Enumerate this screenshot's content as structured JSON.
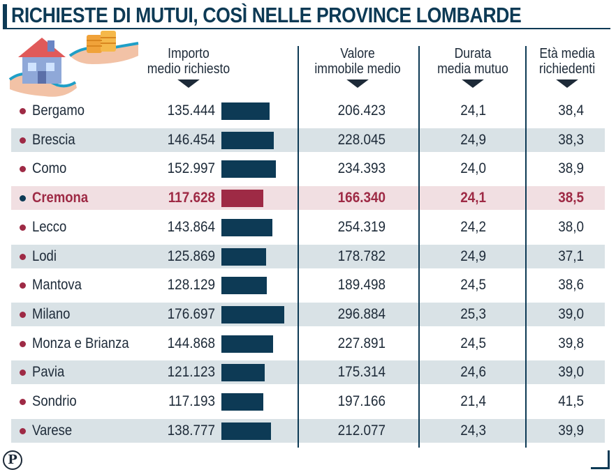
{
  "title": "RICHIESTE DI MUTUI, COSÌ NELLE PROVINCE LOMBARDE",
  "colors": {
    "primary": "#0d3a55",
    "highlight": "#9e2a45",
    "stripe": "#d9e2e6",
    "highlight_bg": "#f1dfe2"
  },
  "icons": {
    "illustration": "house-in-hands-icon",
    "logo": "publisher-p-logo-icon"
  },
  "logo_letter": "P",
  "chart_data": {
    "type": "table",
    "highlighted": "Cremona",
    "columns": [
      {
        "key": "importo",
        "line1": "Importo",
        "line2": "medio richiesto"
      },
      {
        "key": "valore",
        "line1": "Valore",
        "line2": "immobile medio"
      },
      {
        "key": "durata",
        "line1": "Durata",
        "line2": "media mutuo"
      },
      {
        "key": "eta",
        "line1": "Età media",
        "line2": "richiedenti"
      }
    ],
    "bar_series": "importo",
    "bar_range": [
      0,
      176.697
    ],
    "rows": [
      {
        "provincia": "Bergamo",
        "importo": "135.444",
        "importo_k": 135.444,
        "valore": "206.423",
        "durata": "24,1",
        "eta": "38,4"
      },
      {
        "provincia": "Brescia",
        "importo": "146.454",
        "importo_k": 146.454,
        "valore": "228.045",
        "durata": "24,9",
        "eta": "38,3"
      },
      {
        "provincia": "Como",
        "importo": "152.997",
        "importo_k": 152.997,
        "valore": "234.393",
        "durata": "24,0",
        "eta": "38,9"
      },
      {
        "provincia": "Cremona",
        "importo": "117.628",
        "importo_k": 117.628,
        "valore": "166.340",
        "durata": "24,1",
        "eta": "38,5"
      },
      {
        "provincia": "Lecco",
        "importo": "143.864",
        "importo_k": 143.864,
        "valore": "254.319",
        "durata": "24,2",
        "eta": "38,0"
      },
      {
        "provincia": "Lodi",
        "importo": "125.869",
        "importo_k": 125.869,
        "valore": "178.782",
        "durata": "24,9",
        "eta": "37,1"
      },
      {
        "provincia": "Mantova",
        "importo": "128.129",
        "importo_k": 128.129,
        "valore": "189.498",
        "durata": "24,5",
        "eta": "38,6"
      },
      {
        "provincia": "Milano",
        "importo": "176.697",
        "importo_k": 176.697,
        "valore": "296.884",
        "durata": "25,3",
        "eta": "39,0"
      },
      {
        "provincia": "Monza e Brianza",
        "importo": "144.868",
        "importo_k": 144.868,
        "valore": "227.891",
        "durata": "24,5",
        "eta": "39,8"
      },
      {
        "provincia": "Pavia",
        "importo": "121.123",
        "importo_k": 121.123,
        "valore": "175.314",
        "durata": "24,6",
        "eta": "39,0"
      },
      {
        "provincia": "Sondrio",
        "importo": "117.193",
        "importo_k": 117.193,
        "valore": "197.166",
        "durata": "21,4",
        "eta": "41,5"
      },
      {
        "provincia": "Varese",
        "importo": "138.777",
        "importo_k": 138.777,
        "valore": "212.077",
        "durata": "24,3",
        "eta": "39,9"
      }
    ]
  }
}
